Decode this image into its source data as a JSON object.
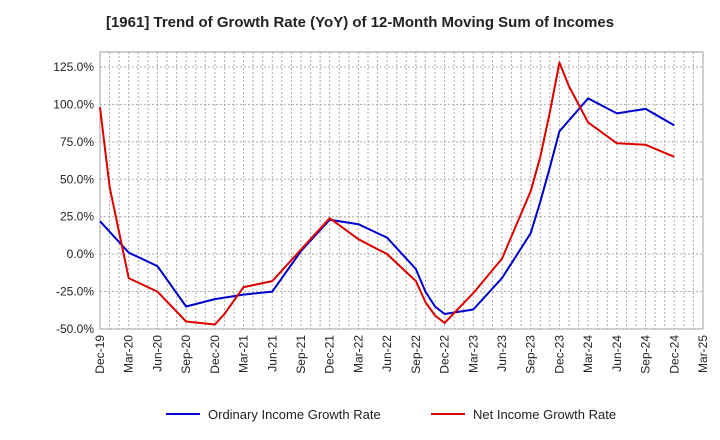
{
  "chart_data": {
    "type": "line",
    "title": "[1961]  Trend of Growth Rate (YoY) of 12-Month Moving Sum of Incomes",
    "xlabel": "",
    "ylabel": "",
    "ylim": [
      -50,
      135
    ],
    "yticks": [
      125,
      100,
      75,
      50,
      25,
      0,
      -25,
      -50
    ],
    "ytick_labels": [
      "125.0%",
      "100.0%",
      "75.0%",
      "50.0%",
      "25.0%",
      "0.0%",
      "-25.0%",
      "-50.0%"
    ],
    "x_tick_labels": [
      "Dec-19",
      "Mar-20",
      "Jun-20",
      "Sep-20",
      "Dec-20",
      "Mar-21",
      "Jun-21",
      "Sep-21",
      "Dec-21",
      "Mar-22",
      "Jun-22",
      "Sep-22",
      "Dec-22",
      "Mar-23",
      "Jun-23",
      "Sep-23",
      "Dec-23",
      "Mar-24",
      "Jun-24",
      "Sep-24",
      "Dec-24",
      "Mar-25"
    ],
    "grid": true,
    "legend_position": "bottom",
    "series": [
      {
        "name": "Ordinary Income Growth Rate",
        "color": "#0000cc",
        "points": [
          [
            "Dec-19",
            22
          ],
          [
            "Mar-20",
            1
          ],
          [
            "Jun-20",
            -8
          ],
          [
            "Sep-20",
            -35
          ],
          [
            "Dec-20",
            -30
          ],
          [
            "Mar-21",
            -27
          ],
          [
            "Jun-21",
            -25
          ],
          [
            "Sep-21",
            2
          ],
          [
            "Dec-21",
            23
          ],
          [
            "Mar-22",
            20
          ],
          [
            "Jun-22",
            11
          ],
          [
            "Sep-22",
            -10
          ],
          [
            "Oct-22",
            -25
          ],
          [
            "Nov-22",
            -35
          ],
          [
            "Dec-22",
            -40
          ],
          [
            "Mar-23",
            -37
          ],
          [
            "Jun-23",
            -16
          ],
          [
            "Sep-23",
            14
          ],
          [
            "Oct-23",
            35
          ],
          [
            "Nov-23",
            58
          ],
          [
            "Dec-23",
            82
          ],
          [
            "Mar-24",
            104
          ],
          [
            "Jun-24",
            94
          ],
          [
            "Sep-24",
            97
          ],
          [
            "Dec-24",
            86
          ]
        ]
      },
      {
        "name": "Net Income Growth Rate",
        "color": "#dd0000",
        "points": [
          [
            "Dec-19",
            98
          ],
          [
            "Jan-20",
            45
          ],
          [
            "Mar-20",
            -16
          ],
          [
            "Jun-20",
            -25
          ],
          [
            "Sep-20",
            -45
          ],
          [
            "Dec-20",
            -47
          ],
          [
            "Jan-21",
            -40
          ],
          [
            "Mar-21",
            -22
          ],
          [
            "Jun-21",
            -18
          ],
          [
            "Sep-21",
            3
          ],
          [
            "Dec-21",
            24
          ],
          [
            "Mar-22",
            10
          ],
          [
            "Jun-22",
            0
          ],
          [
            "Sep-22",
            -18
          ],
          [
            "Oct-22",
            -32
          ],
          [
            "Nov-22",
            -41
          ],
          [
            "Dec-22",
            -46
          ],
          [
            "Mar-23",
            -26
          ],
          [
            "Jun-23",
            -3
          ],
          [
            "Sep-23",
            42
          ],
          [
            "Oct-23",
            65
          ],
          [
            "Nov-23",
            95
          ],
          [
            "Dec-23",
            128
          ],
          [
            "Jan-24",
            112
          ],
          [
            "Mar-24",
            88
          ],
          [
            "Jun-24",
            74
          ],
          [
            "Sep-24",
            73
          ],
          [
            "Dec-24",
            65
          ]
        ]
      }
    ]
  }
}
